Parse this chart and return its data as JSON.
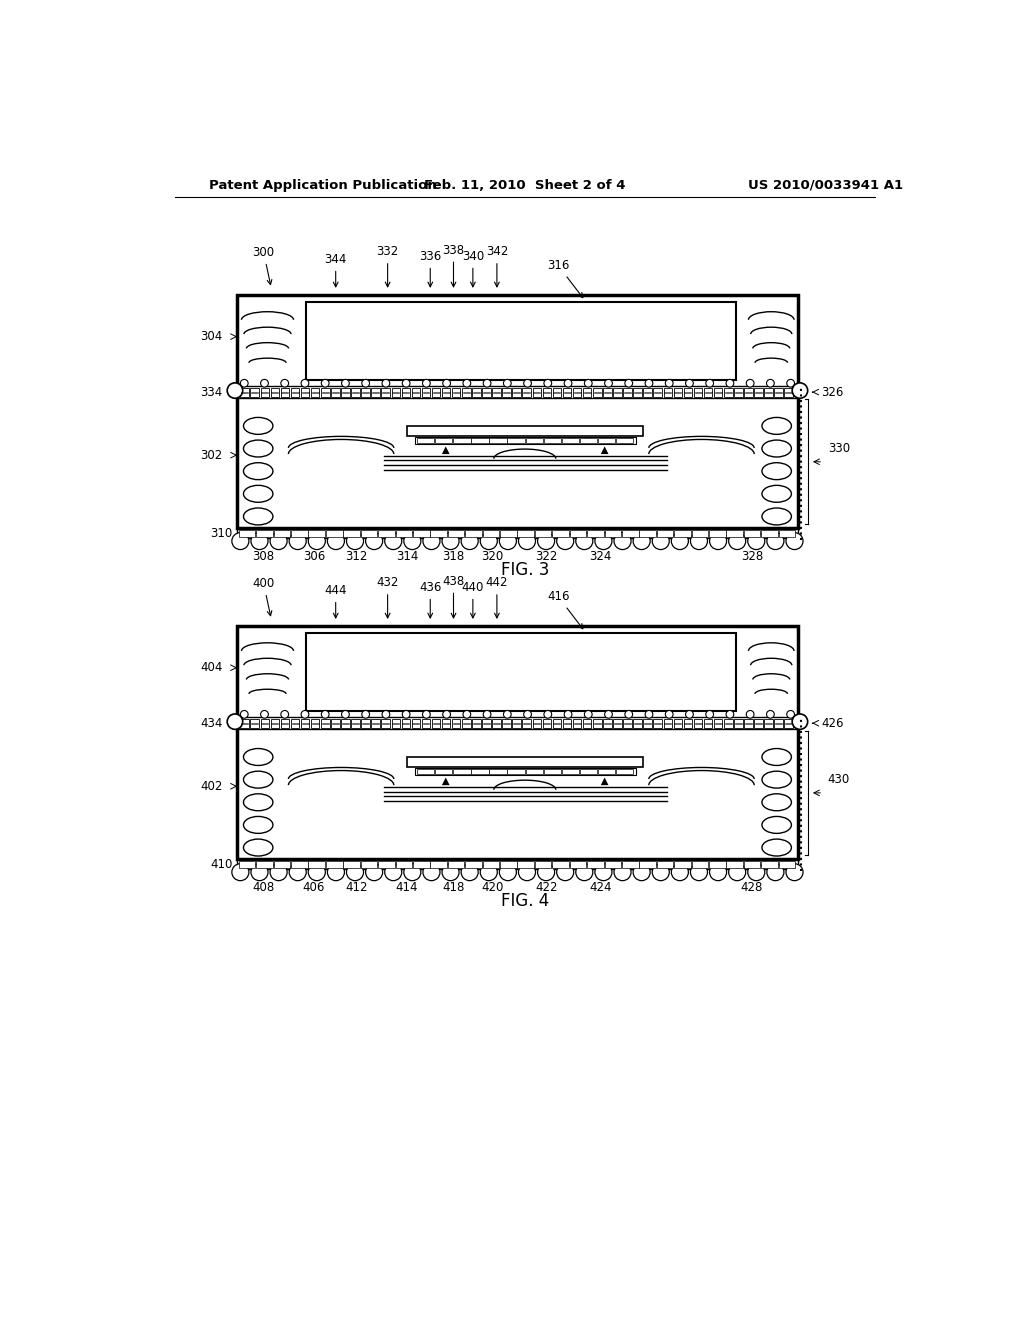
{
  "bg_color": "#ffffff",
  "header_text": "Patent Application Publication",
  "header_date": "Feb. 11, 2010  Sheet 2 of 4",
  "header_patent": "US 2010/0033941 A1",
  "fig3_label": "FIG. 3",
  "fig4_label": "FIG. 4",
  "line_color": "#000000"
}
